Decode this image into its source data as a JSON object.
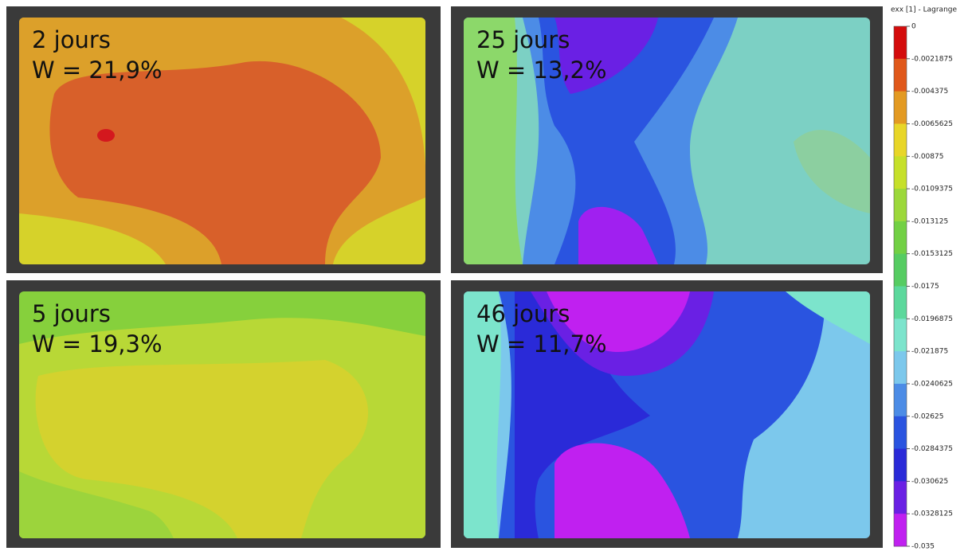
{
  "panels": [
    {
      "days": "2 jours",
      "moisture": "W = 21,9%"
    },
    {
      "days": "25 jours",
      "moisture": "W = 13,2%"
    },
    {
      "days": "5 jours",
      "moisture": "W = 19,3%"
    },
    {
      "days": "46 jours",
      "moisture": "W = 11,7%"
    }
  ],
  "colorbar": {
    "title": "exx [1] - Lagrange",
    "ticks": [
      "0",
      "-0.0021875",
      "-0.004375",
      "-0.0065625",
      "-0.00875",
      "-0.0109375",
      "-0.013125",
      "-0.0153125",
      "-0.0175",
      "-0.0196875",
      "-0.021875",
      "-0.0240625",
      "-0.02625",
      "-0.0284375",
      "-0.030625",
      "-0.0328125",
      "-0.035"
    ],
    "colors": [
      "#d40c0c",
      "#e0581a",
      "#e39a22",
      "#e8d628",
      "#c6e02a",
      "#9cd83a",
      "#72d044",
      "#56cc62",
      "#5cd89c",
      "#7ce4cc",
      "#7cc8ec",
      "#4c8ce6",
      "#2a54e0",
      "#2a2ad8",
      "#6a20e4",
      "#c020f0"
    ]
  }
}
